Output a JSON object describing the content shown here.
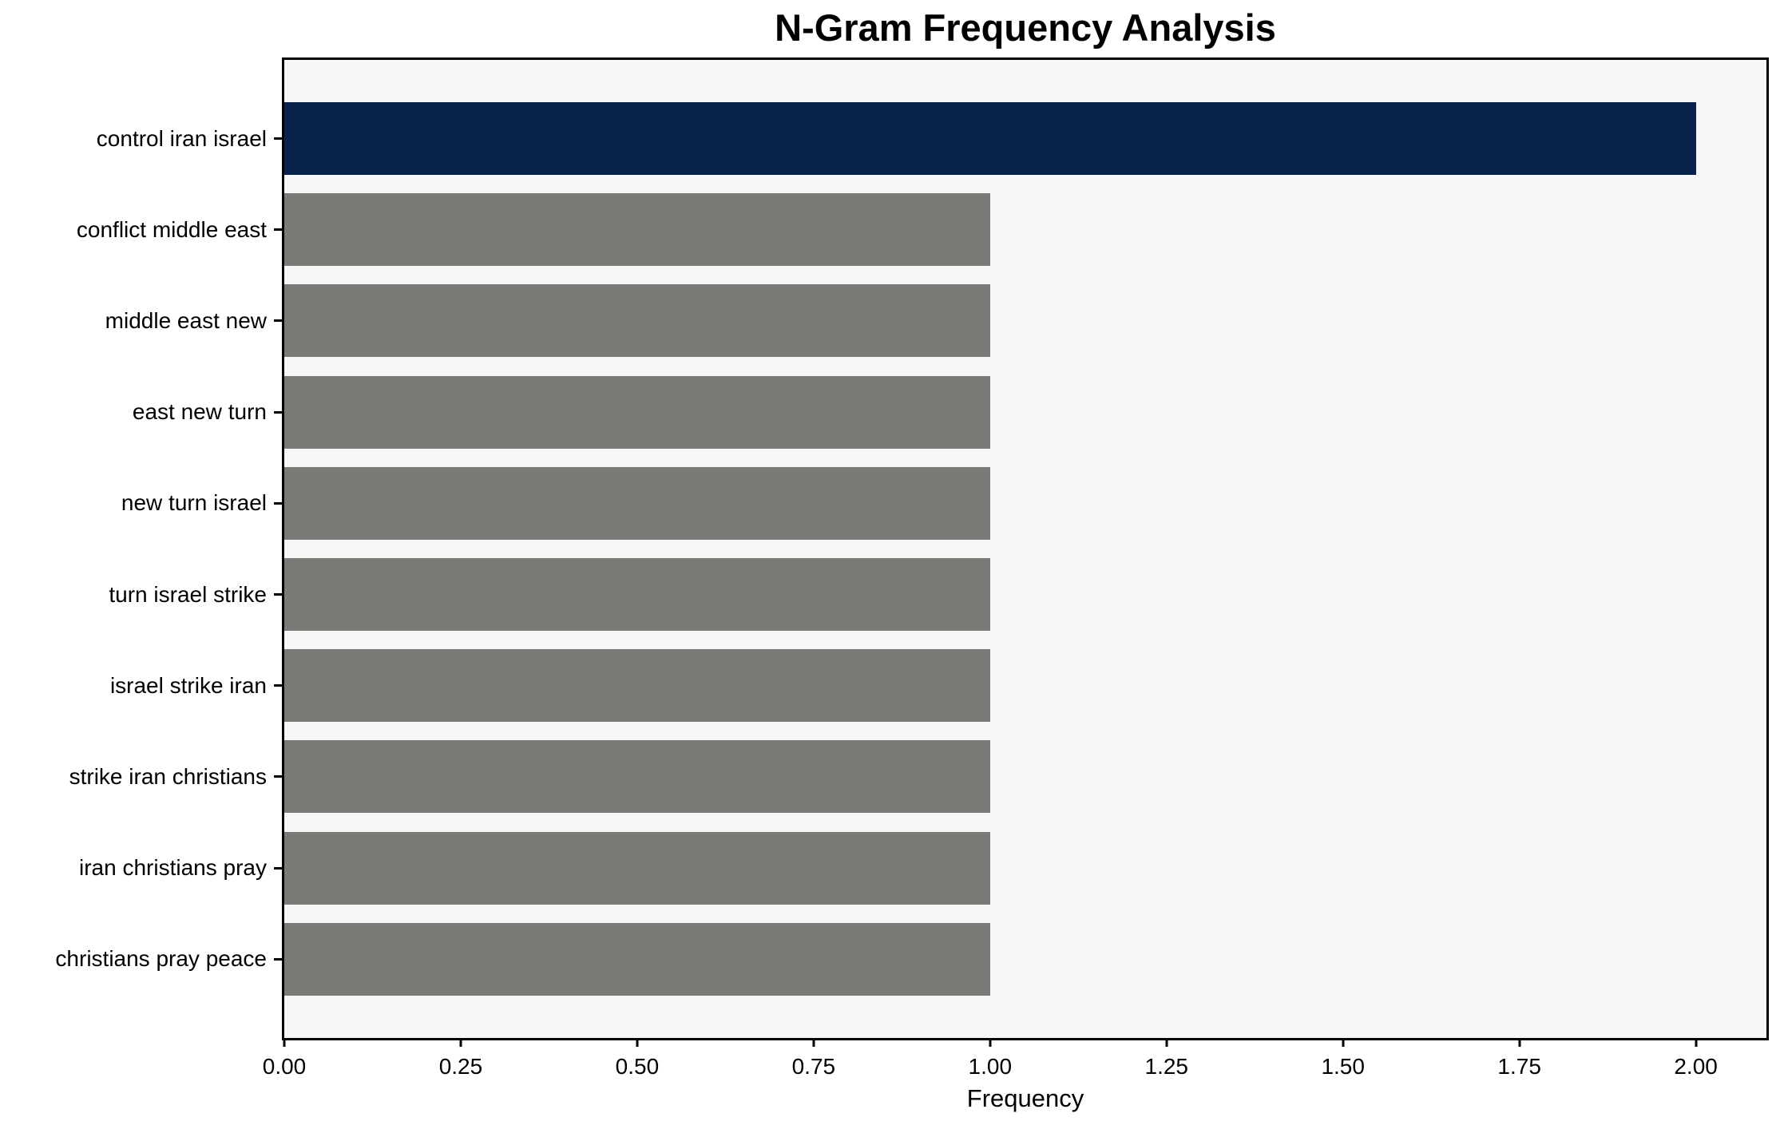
{
  "chart_data": {
    "type": "bar",
    "orientation": "horizontal",
    "title": "N-Gram Frequency Analysis",
    "xlabel": "Frequency",
    "ylabel": "",
    "categories": [
      "control iran israel",
      "conflict middle east",
      "middle east new",
      "east new turn",
      "new turn israel",
      "turn israel strike",
      "israel strike iran",
      "strike iran christians",
      "iran christians pray",
      "christians pray peace"
    ],
    "values": [
      2.0,
      1.0,
      1.0,
      1.0,
      1.0,
      1.0,
      1.0,
      1.0,
      1.0,
      1.0
    ],
    "highlight_index": 0,
    "xlim": [
      0,
      2.1
    ],
    "x_tick_values": [
      0.0,
      0.25,
      0.5,
      0.75,
      1.0,
      1.25,
      1.5,
      1.75,
      2.0
    ],
    "x_tick_labels": [
      "0.00",
      "0.25",
      "0.50",
      "0.75",
      "1.00",
      "1.25",
      "1.50",
      "1.75",
      "2.00"
    ],
    "grid": false,
    "legend": "none",
    "colors": {
      "highlight_bar": "#08234a",
      "default_bar": "#7b7a77",
      "plot_background": "#f7f7f7",
      "figure_background": "#ffffff",
      "text": "#000000",
      "spine": "#000000"
    }
  }
}
